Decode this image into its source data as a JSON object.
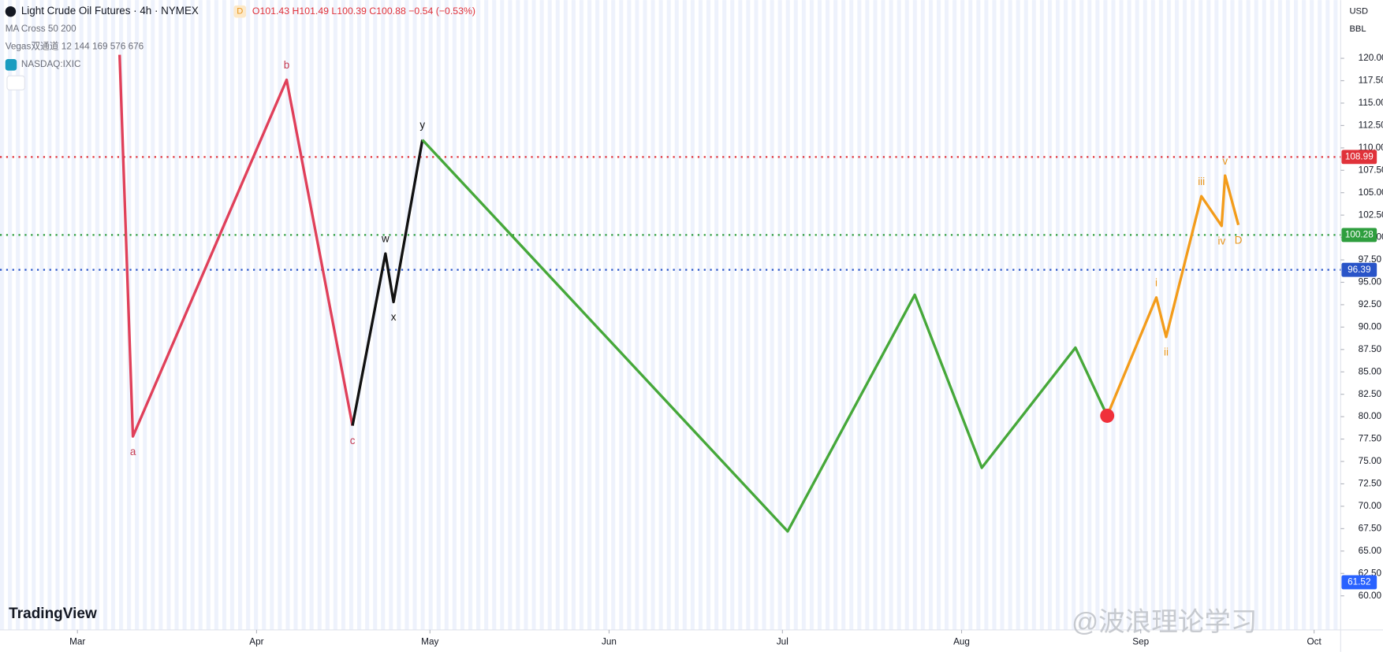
{
  "header": {
    "symbol": "Light Crude Oil Futures · 4h · NYMEX",
    "badge": "D",
    "ohlc": "O101.43 H101.49 L100.39 C100.88 −0.54 (−0.53%)",
    "indicators": [
      "MA Cross 50 200",
      "Vegas双通道 12 144 169 576 676",
      "NASDAQ:IXIC"
    ],
    "currency": "USD",
    "unit": "BBL",
    "logo": "TradingView",
    "watermark": "@波浪理论学习"
  },
  "chart_data": {
    "type": "line",
    "xlim": [
      14.6,
      246.6
    ],
    "xticks": [
      {
        "value": 28,
        "label": "Mar"
      },
      {
        "value": 59,
        "label": "Apr"
      },
      {
        "value": 89,
        "label": "May"
      },
      {
        "value": 120,
        "label": "Jun"
      },
      {
        "value": 150,
        "label": "Jul"
      },
      {
        "value": 181,
        "label": "Aug"
      },
      {
        "value": 212,
        "label": "Sep"
      },
      {
        "value": 242,
        "label": "Oct"
      }
    ],
    "ylim": [
      56.2,
      126.5
    ],
    "yticks": [
      {
        "value": 60,
        "label": "60.00"
      },
      {
        "value": 62.5,
        "label": "62.50"
      },
      {
        "value": 65,
        "label": "65.00"
      },
      {
        "value": 67.5,
        "label": "67.50"
      },
      {
        "value": 70,
        "label": "70.00"
      },
      {
        "value": 72.5,
        "label": "72.50"
      },
      {
        "value": 75,
        "label": "75.00"
      },
      {
        "value": 77.5,
        "label": "77.50"
      },
      {
        "value": 80,
        "label": "80.00"
      },
      {
        "value": 82.5,
        "label": "82.50"
      },
      {
        "value": 85,
        "label": "85.00"
      },
      {
        "value": 87.5,
        "label": "87.50"
      },
      {
        "value": 90,
        "label": "90.00"
      },
      {
        "value": 92.5,
        "label": "92.50"
      },
      {
        "value": 95,
        "label": "95.00"
      },
      {
        "value": 97.5,
        "label": "97.50"
      },
      {
        "value": 100,
        "label": "100.00"
      },
      {
        "value": 102.5,
        "label": "102.50"
      },
      {
        "value": 105,
        "label": "105.00"
      },
      {
        "value": 107.5,
        "label": "107.50"
      },
      {
        "value": 110,
        "label": "110.00"
      },
      {
        "value": 112.5,
        "label": "112.50"
      },
      {
        "value": 115,
        "label": "115.00"
      },
      {
        "value": 117.5,
        "label": "117.50"
      },
      {
        "value": 120,
        "label": "120.00"
      }
    ],
    "levels": [
      {
        "value": 108.99,
        "color": "#e0323a",
        "line": true
      },
      {
        "value": 100.28,
        "color": "#2e9e3e",
        "line": true
      },
      {
        "value": 96.39,
        "color": "#2954c8",
        "line": true
      },
      {
        "value": 61.52,
        "color": "#2962ff",
        "line": false
      }
    ],
    "series": [
      {
        "color": "#e0405a",
        "label_color": "#c43a52",
        "x": [
          35.3,
          37.6,
          64.2,
          75.6
        ],
        "values": [
          120.4,
          77.8,
          117.6,
          79.0
        ],
        "labels": [
          null,
          "a",
          "b",
          "c"
        ]
      },
      {
        "color": "#111111",
        "label_color": "#111111",
        "x": [
          75.6,
          81.3,
          82.7,
          87.7
        ],
        "values": [
          79.0,
          98.2,
          92.8,
          110.9
        ],
        "labels": [
          null,
          "w",
          "x",
          "y"
        ]
      },
      {
        "color": "#46a83a",
        "label_color": "#46a83a",
        "x": [
          87.7,
          150.9,
          172.9,
          184.5,
          200.7,
          206.2
        ],
        "values": [
          110.9,
          67.2,
          93.6,
          74.3,
          87.7,
          80.1
        ],
        "labels": [
          null,
          null,
          null,
          null,
          null,
          null
        ]
      },
      {
        "color": "#f39c1b",
        "label_color": "#e8951c",
        "x": [
          206.2,
          214.7,
          216.4,
          222.5,
          226.0,
          226.6,
          228.9
        ],
        "values": [
          80.1,
          93.3,
          88.9,
          104.6,
          101.3,
          106.9,
          101.4
        ],
        "labels": [
          null,
          "i",
          "ii",
          "iii",
          "iv",
          "v",
          "D"
        ]
      }
    ],
    "marker": {
      "x": 206.2,
      "value": 80.1,
      "color": "#f0303a"
    }
  }
}
